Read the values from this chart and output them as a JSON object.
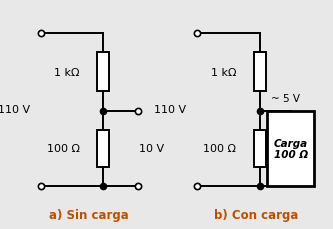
{
  "bg_color": "#e8e8e8",
  "title_a": "a) Sin carga",
  "title_b": "b) Con carga",
  "label_110v_a": "110 V",
  "label_110v_b": "110 V",
  "label_1k_a": "1 kΩ",
  "label_1k_b": "1 kΩ",
  "label_100_a": "100 Ω",
  "label_100_b": "100 Ω",
  "label_10v": "10 V",
  "label_5v": "~ 5 V",
  "label_carga": "Carga\n100 Ω",
  "title_color": "#c05000"
}
